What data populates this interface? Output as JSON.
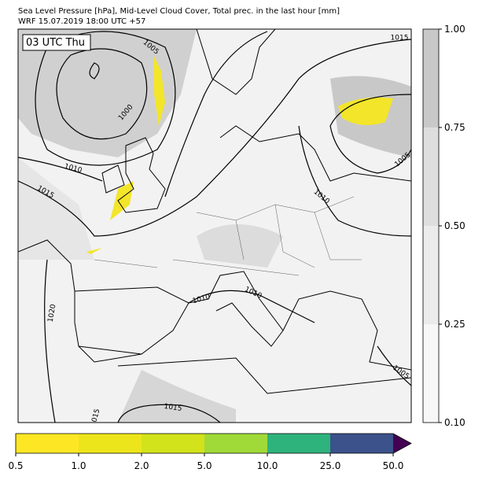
{
  "header": {
    "title_line1": "Sea Level Pressure [hPa], Mid-Level Cloud Cover, Total prec. in the last hour [mm]",
    "title_line2": "WRF 15.07.2019 18:00 UTC +57"
  },
  "map": {
    "time_label": "03 UTC Thu",
    "isobar_labels": [
      "1005",
      "1000",
      "1010",
      "1015",
      "1015",
      "1005",
      "1010",
      "1020",
      "1010",
      "1010",
      "1015",
      "015",
      "1005"
    ]
  },
  "cloud_colorbar": {
    "ticks": [
      "0.10",
      "0.25",
      "0.50",
      "0.75",
      "1.00"
    ],
    "colors": [
      "#f7f7f7",
      "#ebebeb",
      "#dedede",
      "#c8c8c8"
    ]
  },
  "precip_colorbar": {
    "ticks": [
      "0.5",
      "1.0",
      "2.0",
      "5.0",
      "10.0",
      "25.0",
      "50.0"
    ],
    "colors": [
      "#fde725",
      "#ede51b",
      "#d2e21b",
      "#a0da39",
      "#2eb37c",
      "#3b528b"
    ],
    "extend_color": "#440154"
  }
}
